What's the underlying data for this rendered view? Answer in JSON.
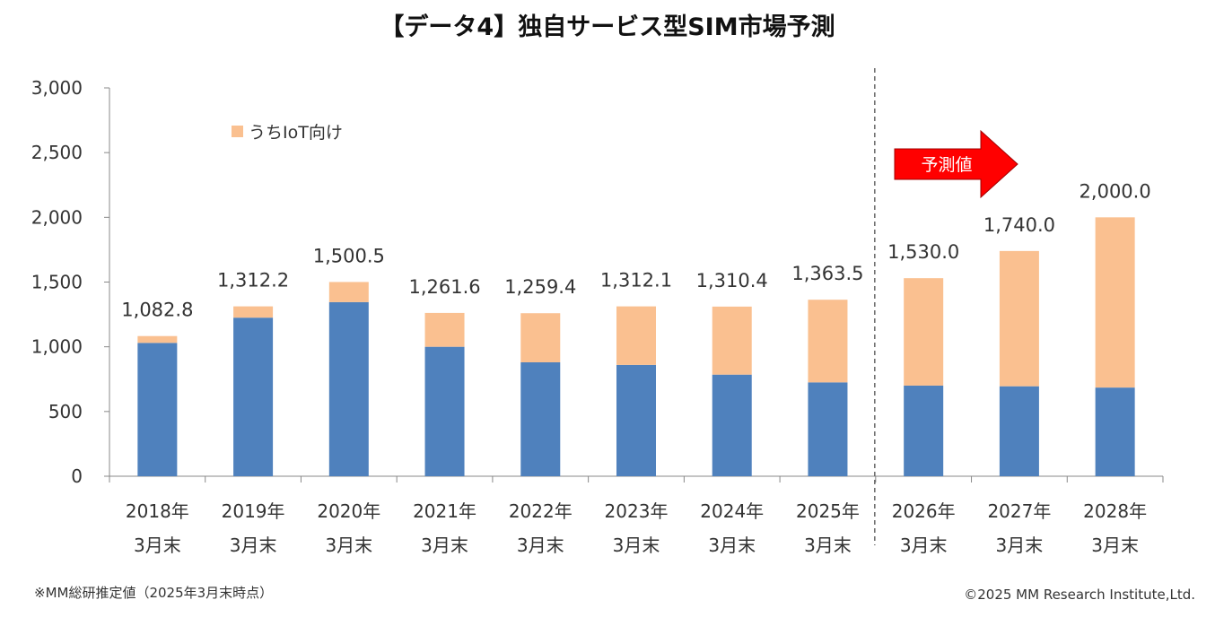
{
  "chart_data": {
    "type": "bar",
    "stacked": true,
    "title": "【データ4】独自サービス型SIM市場予測",
    "categories": [
      [
        "2018年",
        "3月末"
      ],
      [
        "2019年",
        "3月末"
      ],
      [
        "2020年",
        "3月末"
      ],
      [
        "2021年",
        "3月末"
      ],
      [
        "2022年",
        "3月末"
      ],
      [
        "2023年",
        "3月末"
      ],
      [
        "2024年",
        "3月末"
      ],
      [
        "2025年",
        "3月末"
      ],
      [
        "2026年",
        "3月末"
      ],
      [
        "2027年",
        "3月末"
      ],
      [
        "2028年",
        "3月末"
      ]
    ],
    "totals": [
      1082.8,
      1312.2,
      1500.5,
      1261.6,
      1259.4,
      1312.1,
      1310.4,
      1363.5,
      1530.0,
      1740.0,
      2000.0
    ],
    "total_labels": [
      "1,082.8",
      "1,312.2",
      "1,500.5",
      "1,261.6",
      "1,259.4",
      "1,312.1",
      "1,310.4",
      "1,363.5",
      "1,530.0",
      "1,740.0",
      "2,000.0"
    ],
    "series": [
      {
        "values": [
          1030,
          1225,
          1345,
          1000,
          880,
          860,
          785,
          725,
          700,
          695,
          685
        ],
        "color": "#4f81bd"
      },
      {
        "name": "うちIoT向け",
        "values": [
          52.8,
          87.2,
          155.5,
          261.6,
          379.4,
          452.1,
          525.4,
          638.5,
          830.0,
          1045.0,
          1315.0
        ],
        "color": "#fac090"
      }
    ],
    "ylim": [
      0,
      3000
    ],
    "yticks": [
      0,
      500,
      1000,
      1500,
      2000,
      2500,
      3000
    ],
    "ytick_labels": [
      "0",
      "500",
      "1,000",
      "1,500",
      "2,000",
      "2,500",
      "3,000"
    ],
    "forecast_start_index": 8,
    "forecast_label": "予測値",
    "forecast_arrow_color": "#ff0000",
    "grid": false,
    "legend_position": "top-left"
  },
  "footer": {
    "note": "※MM総研推定値（2025年3月末時点）",
    "copyright": "©2025 MM Research Institute,Ltd."
  }
}
